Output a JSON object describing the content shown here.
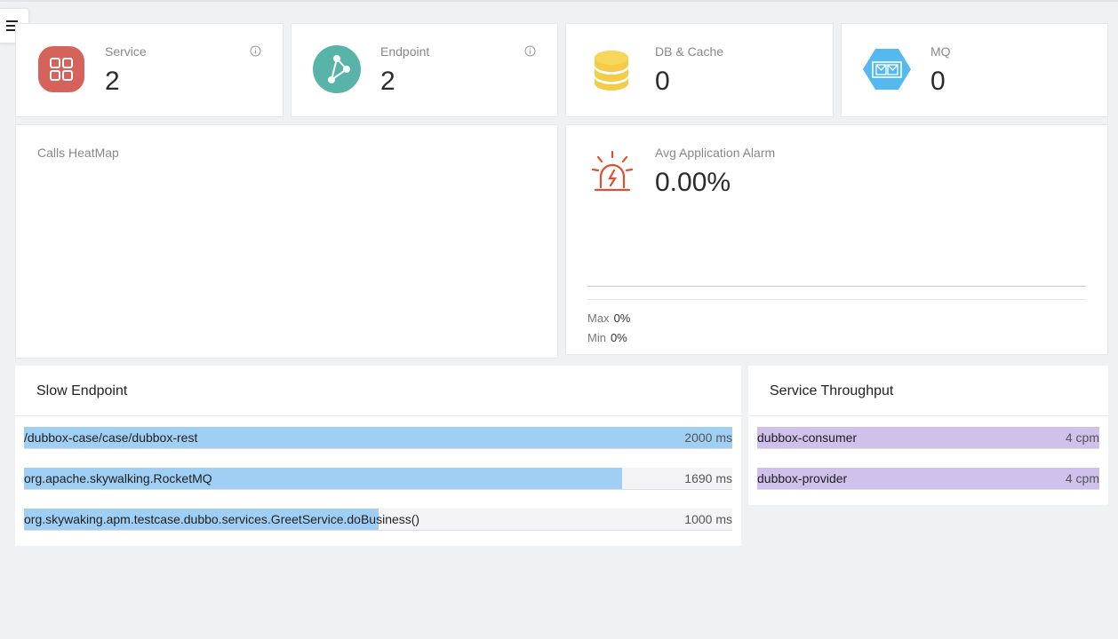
{
  "stats": [
    {
      "label": "Service",
      "value": "2",
      "icon": "grid-icon",
      "color": "#d5625b"
    },
    {
      "label": "Endpoint",
      "value": "2",
      "icon": "share-nodes-icon",
      "color": "#58b3a8"
    },
    {
      "label": "DB & Cache",
      "value": "0",
      "icon": "database-icon",
      "color": "#f5cc45"
    },
    {
      "label": "MQ",
      "value": "0",
      "icon": "mail-hexagon-icon",
      "color": "#55b8ef"
    }
  ],
  "heatmap": {
    "title": "Calls HeatMap"
  },
  "alarm": {
    "title": "Avg Application Alarm",
    "value": "0.00%",
    "max_label": "Max",
    "max_value": "0%",
    "min_label": "Min",
    "min_value": "0%",
    "icon": "siren-icon",
    "color": "#e0502f"
  },
  "slow_endpoint": {
    "title": "Slow Endpoint",
    "bar_color": "#9fcff5",
    "items": [
      {
        "name": "/dubbox-case/case/dubbox-rest",
        "value": "2000 ms",
        "ratio": 1.0
      },
      {
        "name": "org.apache.skywalking.RocketMQ",
        "value": "1690 ms",
        "ratio": 0.845
      },
      {
        "name": "org.skywaking.apm.testcase.dubbo.services.GreetService.doBusiness()",
        "value": "1000 ms",
        "ratio": 0.5
      }
    ]
  },
  "service_throughput": {
    "title": "Service Throughput",
    "bar_color": "#d0c0ec",
    "items": [
      {
        "name": "dubbox-consumer",
        "value": "4 cpm",
        "ratio": 1.0
      },
      {
        "name": "dubbox-provider",
        "value": "4 cpm",
        "ratio": 1.0
      }
    ]
  }
}
